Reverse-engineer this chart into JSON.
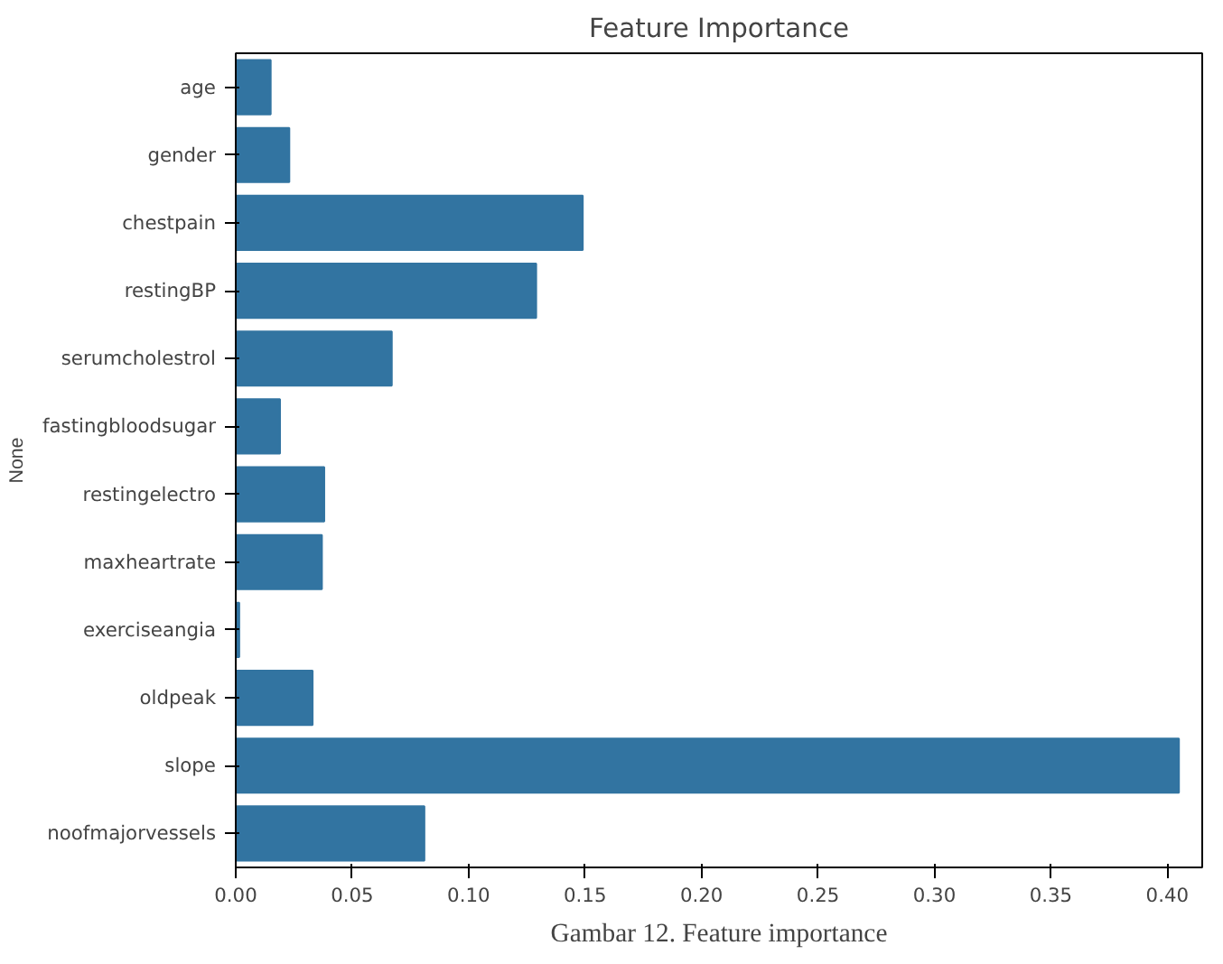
{
  "chart_data": {
    "type": "bar",
    "orientation": "horizontal",
    "title": "Feature Importance",
    "ylabel": "None",
    "categories": [
      "age",
      "gender",
      "chestpain",
      "restingBP",
      "serumcholestrol",
      "fastingbloodsugar",
      "restingelectro",
      "maxheartrate",
      "exerciseangia",
      "oldpeak",
      "slope",
      "noofmajorvessels"
    ],
    "values": [
      0.015,
      0.023,
      0.149,
      0.129,
      0.067,
      0.019,
      0.038,
      0.037,
      0.0015,
      0.033,
      0.405,
      0.081
    ],
    "color": "#3274a1",
    "xlim": [
      0,
      0.415
    ],
    "xticks": [
      {
        "value": 0,
        "label": "0.00"
      },
      {
        "value": 0.05,
        "label": "0.05"
      },
      {
        "value": 0.1,
        "label": "0.10"
      },
      {
        "value": 0.15,
        "label": "0.15"
      },
      {
        "value": 0.2,
        "label": "0.20"
      },
      {
        "value": 0.25,
        "label": "0.25"
      },
      {
        "value": 0.3,
        "label": "0.30"
      },
      {
        "value": 0.35,
        "label": "0.35"
      },
      {
        "value": 0.4,
        "label": "0.40"
      }
    ],
    "grid": false,
    "annotations": [
      "Gambar 12. Feature importance"
    ]
  }
}
